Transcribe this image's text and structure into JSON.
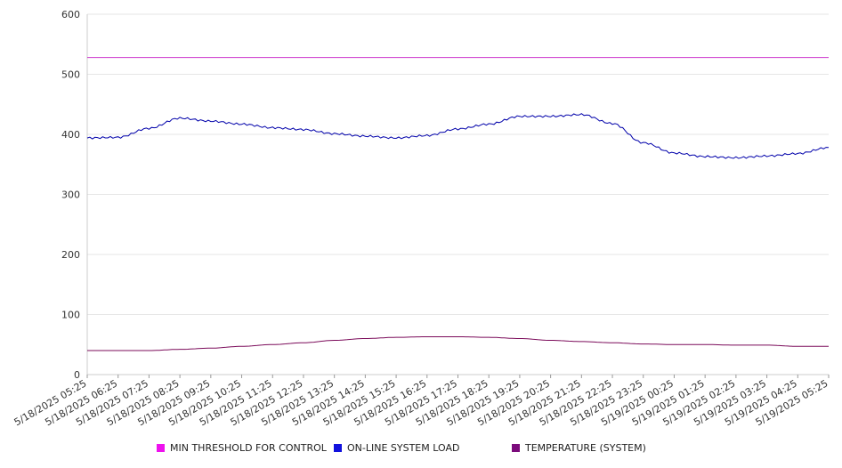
{
  "chart_data": {
    "type": "line",
    "title": "",
    "xlabel": "",
    "ylabel": "",
    "ylim": [
      0,
      600
    ],
    "y_ticks": [
      "0",
      "100",
      "200",
      "300",
      "400",
      "500",
      "600"
    ],
    "grid": true,
    "legend_position": "bottom",
    "x_tick_labels": [
      "5/18/2025 05:25",
      "5/18/2025 06:25",
      "5/18/2025 07:25",
      "5/18/2025 08:25",
      "5/18/2025 09:25",
      "5/18/2025 10:25",
      "5/18/2025 11:25",
      "5/18/2025 12:25",
      "5/18/2025 13:25",
      "5/18/2025 14:25",
      "5/18/2025 15:25",
      "5/18/2025 16:25",
      "5/18/2025 17:25",
      "5/18/2025 18:25",
      "5/18/2025 19:25",
      "5/18/2025 20:25",
      "5/18/2025 21:25",
      "5/18/2025 22:25",
      "5/18/2025 23:25",
      "5/19/2025 00:25",
      "5/19/2025 01:25",
      "5/19/2025 02:25",
      "5/19/2025 03:25",
      "5/19/2025 04:25",
      "5/19/2025 05:25"
    ],
    "series": [
      {
        "name": "MIN THRESHOLD FOR CONTROL",
        "color": "#cc33cc",
        "values": [
          528,
          528,
          528,
          528,
          528,
          528,
          528,
          528,
          528,
          528,
          528,
          528,
          528,
          528,
          528,
          528,
          528,
          528,
          528,
          528,
          528,
          528,
          528,
          528,
          528
        ]
      },
      {
        "name": "ON-LINE SYSTEM LOAD",
        "color": "#0000aa",
        "values": [
          394,
          395,
          410,
          427,
          422,
          417,
          411,
          408,
          401,
          397,
          394,
          398,
          409,
          417,
          430,
          430,
          433,
          418,
          386,
          369,
          363,
          361,
          364,
          368,
          378
        ]
      },
      {
        "name": "TEMPERATURE (SYSTEM)",
        "color": "#7b0b5a",
        "values": [
          40,
          40,
          40,
          42,
          44,
          47,
          50,
          53,
          57,
          60,
          62,
          63,
          63,
          62,
          60,
          57,
          55,
          53,
          51,
          50,
          50,
          49,
          49,
          47,
          47
        ]
      }
    ]
  },
  "legend": {
    "items": [
      {
        "label": "MIN THRESHOLD FOR CONTROL",
        "color": "#ee11ee"
      },
      {
        "label": "ON-LINE SYSTEM LOAD",
        "color": "#1111dd"
      },
      {
        "label": "TEMPERATURE (SYSTEM)",
        "color": "#7b0b7b"
      }
    ]
  }
}
